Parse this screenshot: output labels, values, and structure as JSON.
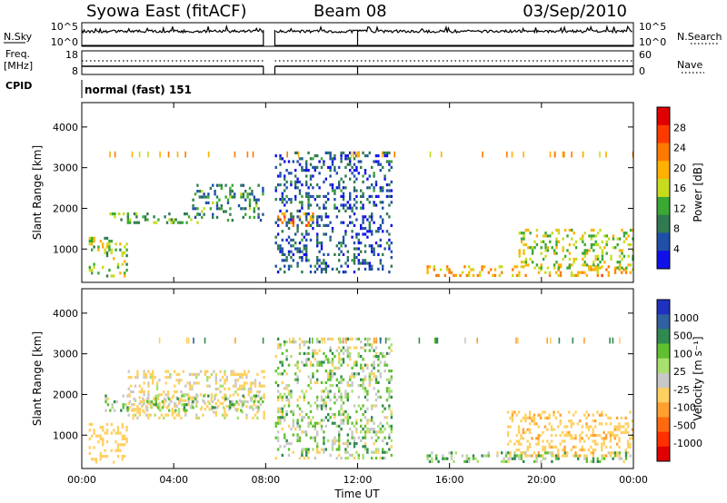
{
  "header": {
    "station": "Syowa East (fitACF)",
    "beam": "Beam 08",
    "date": "03/Sep/2010"
  },
  "noise_panel": {
    "left_label": "N.Sky",
    "left_ticks": [
      "10^5",
      "10^0"
    ],
    "right_ticks": [
      "10^5",
      "10^0"
    ],
    "right_label": "N.Search",
    "right_legend_style": "dotted"
  },
  "freq_panel": {
    "left_label_1": "Freq.",
    "left_label_2": "[MHz]",
    "left_ticks": [
      "18",
      "8"
    ],
    "right_ticks": [
      "60",
      "0"
    ],
    "right_label": "Nave",
    "right_legend_style": "dotted"
  },
  "cpid": {
    "label": "CPID",
    "value": "normal (fast) 151"
  },
  "xaxis": {
    "label": "Time UT",
    "ticks": [
      "00:00",
      "04:00",
      "08:00",
      "12:00",
      "16:00",
      "20:00",
      "00:00"
    ]
  },
  "power_colorbar": {
    "label": "Power [dB]",
    "ticks": [
      "28",
      "24",
      "20",
      "16",
      "12",
      "8",
      "4"
    ],
    "colors": [
      "#e00000",
      "#ff3a00",
      "#ff7b00",
      "#ffb000",
      "#c8dc1e",
      "#3aa832",
      "#2f7a50",
      "#1f4fa8",
      "#1010e8"
    ]
  },
  "velocity_colorbar": {
    "label": "Velocity [m s⁻¹]",
    "ticks": [
      "1000",
      "500",
      "100",
      "25",
      "-25",
      "-100",
      "-500",
      "-1000"
    ],
    "colors": [
      "#2030c0",
      "#3060a0",
      "#2f8a50",
      "#60c030",
      "#a8e070",
      "#c8c8c8",
      "#ffd060",
      "#ffa030",
      "#ff6a10",
      "#ff3000",
      "#e00000"
    ]
  },
  "chart_data": [
    {
      "type": "heatmap",
      "title": "Power",
      "xlabel": "Time UT",
      "ylabel": "Slant Range [km]",
      "xlim": [
        "00:00",
        "24:00"
      ],
      "ylim": [
        180,
        4600
      ],
      "yticks": [
        1000,
        2000,
        3000,
        4000
      ],
      "data_gap_hours": [
        [
          7.9,
          8.4
        ]
      ],
      "features": [
        {
          "start_h": 0.3,
          "end_h": 2.0,
          "range_km": [
            300,
            1300
          ],
          "level_db": 14
        },
        {
          "start_h": 1.2,
          "end_h": 5.0,
          "range_km": [
            1650,
            1900
          ],
          "level_db": 12
        },
        {
          "start_h": 4.8,
          "end_h": 7.9,
          "range_km": [
            1700,
            2600
          ],
          "level_db": 10
        },
        {
          "start_h": 8.4,
          "end_h": 10.2,
          "range_km": [
            1600,
            1900
          ],
          "level_db": 22
        },
        {
          "start_h": 8.4,
          "end_h": 13.5,
          "range_km": [
            400,
            3400
          ],
          "level_db": 6
        },
        {
          "start_h": 15.0,
          "end_h": 24.0,
          "range_km": [
            350,
            600
          ],
          "level_db": 20
        },
        {
          "start_h": 19.0,
          "end_h": 24.0,
          "range_km": [
            500,
            1500
          ],
          "level_db": 16
        }
      ]
    },
    {
      "type": "heatmap",
      "title": "Velocity",
      "xlabel": "Time UT",
      "ylabel": "Slant Range [km]",
      "xlim": [
        "00:00",
        "24:00"
      ],
      "ylim": [
        180,
        4600
      ],
      "yticks": [
        1000,
        2000,
        3000,
        4000
      ],
      "data_gap_hours": [
        [
          7.9,
          8.4
        ]
      ],
      "features": [
        {
          "start_h": 0.3,
          "end_h": 2.0,
          "range_km": [
            300,
            1300
          ],
          "vel_ms": -300
        },
        {
          "start_h": 2.0,
          "end_h": 7.9,
          "range_km": [
            1400,
            2600
          ],
          "vel_ms": -150
        },
        {
          "start_h": 1.0,
          "end_h": 7.9,
          "range_km": [
            1600,
            2000
          ],
          "vel_ms": 0
        },
        {
          "start_h": 8.4,
          "end_h": 13.5,
          "range_km": [
            400,
            3400
          ],
          "vel_ms": 0
        },
        {
          "start_h": 15.0,
          "end_h": 24.0,
          "range_km": [
            350,
            600
          ],
          "vel_ms": 40
        },
        {
          "start_h": 18.5,
          "end_h": 24.0,
          "range_km": [
            500,
            1600
          ],
          "vel_ms": -400
        }
      ]
    }
  ]
}
